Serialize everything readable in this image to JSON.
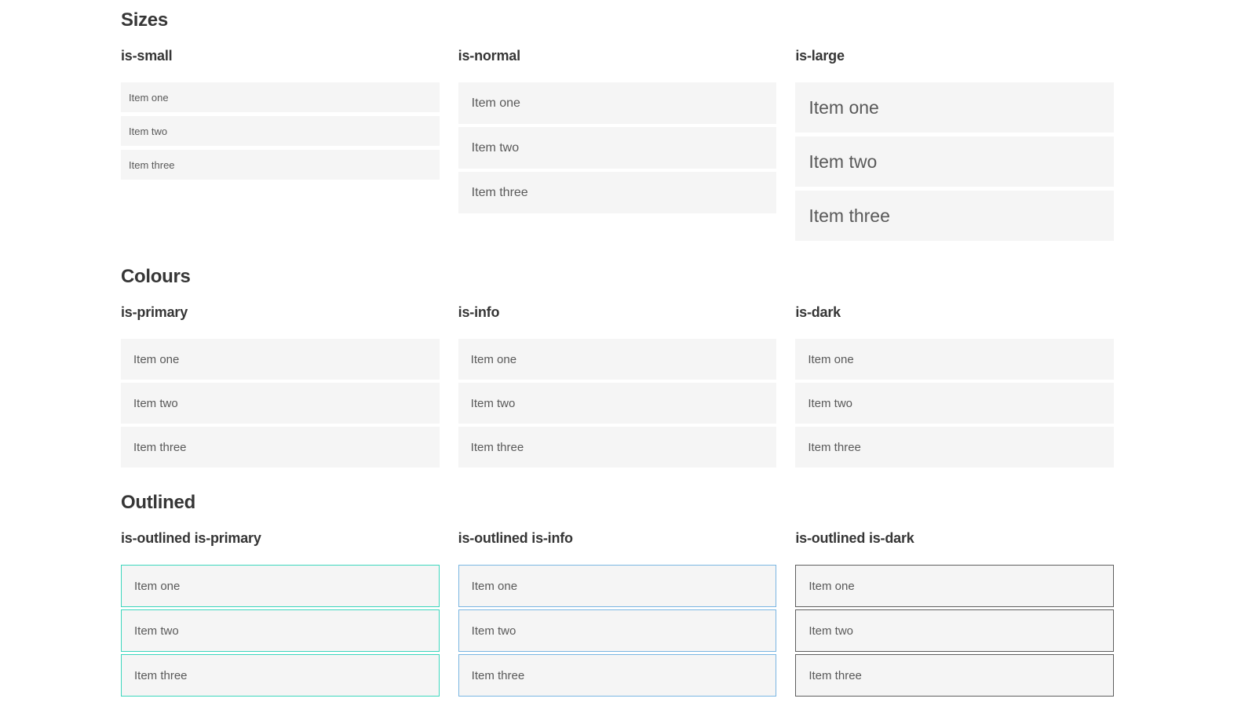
{
  "colors": {
    "page_background": "#ffffff",
    "heading_text": "#363636",
    "item_light_background": "#f5f5f5",
    "item_light_text": "#595959",
    "primary": "#00d1b2",
    "info": "#3596db",
    "dark": "#363636",
    "outlined_primary_border": "#3cd6bd",
    "outlined_info_border": "#7ab6e2",
    "outlined_info_text": "#4298d8",
    "outlined_dark_border": "#5e5e5e",
    "outlined_dark_text": "#4a4a4a",
    "colored_item_text": "#ffffff"
  },
  "sections": [
    {
      "title": "Sizes",
      "groups": [
        {
          "label": "is-small",
          "items": [
            "Item one",
            "Item two",
            "Item three"
          ]
        },
        {
          "label": "is-normal",
          "items": [
            "Item one",
            "Item two",
            "Item three"
          ]
        },
        {
          "label": "is-large",
          "items": [
            "Item one",
            "Item two",
            "Item three"
          ]
        }
      ]
    },
    {
      "title": "Colours",
      "groups": [
        {
          "label": "is-primary",
          "items": [
            "Item one",
            "Item two",
            "Item three"
          ]
        },
        {
          "label": "is-info",
          "items": [
            "Item one",
            "Item two",
            "Item three"
          ]
        },
        {
          "label": "is-dark",
          "items": [
            "Item one",
            "Item two",
            "Item three"
          ]
        }
      ]
    },
    {
      "title": "Outlined",
      "groups": [
        {
          "label": "is-outlined is-primary",
          "items": [
            "Item one",
            "Item two",
            "Item three"
          ]
        },
        {
          "label": "is-outlined is-info",
          "items": [
            "Item one",
            "Item two",
            "Item three"
          ]
        },
        {
          "label": "is-outlined is-dark",
          "items": [
            "Item one",
            "Item two",
            "Item three"
          ]
        }
      ]
    }
  ]
}
